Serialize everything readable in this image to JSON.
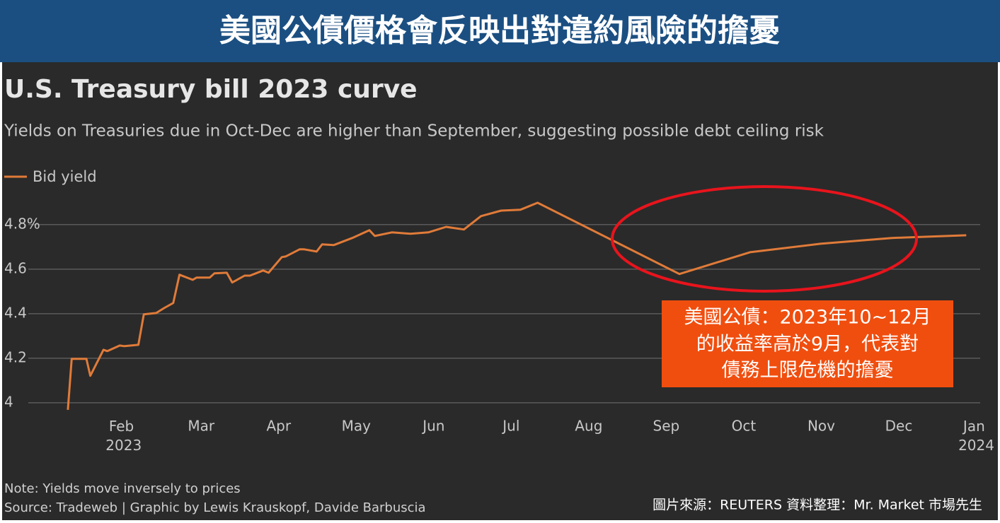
{
  "banner": {
    "title": "美國公債價格會反映出對違約風險的擔憂"
  },
  "chart_data": {
    "type": "line",
    "title": "U.S. Treasury bill 2023 curve",
    "subtitle": "Yields on Treasuries due in Oct-Dec are higher than September, suggesting possible debt ceiling risk",
    "x": [
      0.28,
      0.33,
      0.52,
      0.57,
      0.74,
      0.79,
      0.95,
      1.01,
      1.19,
      1.26,
      1.42,
      1.52,
      1.64,
      1.72,
      1.89,
      1.94,
      2.11,
      2.17,
      2.33,
      2.4,
      2.56,
      2.63,
      2.8,
      2.87,
      3.04,
      3.09,
      3.27,
      3.33,
      3.49,
      3.56,
      3.71,
      3.95,
      4.17,
      4.24,
      4.46,
      4.7,
      4.93,
      5.16,
      5.39,
      5.61,
      5.87,
      6.12,
      6.34,
      8.17,
      9.08,
      9.99,
      10.91,
      11.87
    ],
    "series": [
      {
        "name": "Bid yield",
        "color": "#e07b39",
        "values": [
          3.968,
          4.197,
          4.197,
          4.121,
          4.238,
          4.232,
          4.257,
          4.254,
          4.26,
          4.397,
          4.403,
          4.425,
          4.448,
          4.575,
          4.552,
          4.562,
          4.562,
          4.581,
          4.584,
          4.54,
          4.571,
          4.571,
          4.594,
          4.584,
          4.654,
          4.657,
          4.689,
          4.689,
          4.679,
          4.711,
          4.708,
          4.74,
          4.775,
          4.749,
          4.765,
          4.759,
          4.765,
          4.79,
          4.778,
          4.838,
          4.863,
          4.867,
          4.898,
          4.578,
          4.676,
          4.714,
          4.74,
          4.752
        ]
      }
    ],
    "xlim": [
      -0.23,
      12.05
    ],
    "xticks": [
      {
        "value": 1,
        "label": "Feb 2023"
      },
      {
        "value": 2,
        "label": "Mar"
      },
      {
        "value": 3,
        "label": "Apr"
      },
      {
        "value": 4,
        "label": "May"
      },
      {
        "value": 5,
        "label": "Jun"
      },
      {
        "value": 6,
        "label": "Jul"
      },
      {
        "value": 7,
        "label": "Aug"
      },
      {
        "value": 8,
        "label": "Sep"
      },
      {
        "value": 9,
        "label": "Oct"
      },
      {
        "value": 10,
        "label": "Nov"
      },
      {
        "value": 11,
        "label": "Dec"
      },
      {
        "value": 12,
        "label": "Jan 2024"
      }
    ],
    "ylim": [
      3.95,
      4.92
    ],
    "yticks": [
      4,
      4.2,
      4.4,
      4.6,
      {
        "value": 4.8,
        "label": "4.8%"
      }
    ],
    "grid": true,
    "note": "Note: Yields move inversely to prices",
    "source": "Source: Tradeweb | Graphic by Lewis Krauskopf, Davide Barbuscia"
  },
  "annotation": {
    "lines": [
      "美國公債：2023年10~12月",
      "的收益率高於9月，代表對",
      "債務上限危機的擔憂"
    ]
  },
  "credit": "圖片來源：REUTERS  資料整理：Mr. Market 市場先生"
}
